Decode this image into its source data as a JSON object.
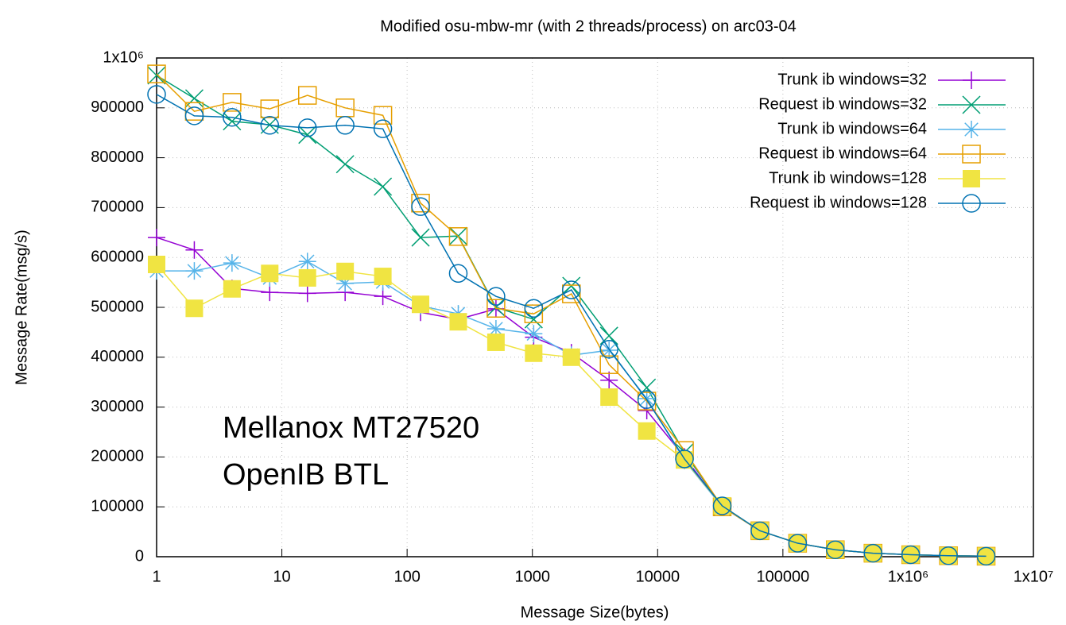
{
  "chart_data": {
    "type": "line",
    "title": "Modified osu-mbw-mr (with 2 threads/process) on arc03-04",
    "x_label": "Message Size(bytes)",
    "y_label": "Message Rate(msg/s)",
    "annotations": [
      "Mellanox MT27520",
      "OpenIB BTL"
    ],
    "x_log": true,
    "grid": true,
    "legend": "top-right",
    "xlim": [
      1,
      10000000
    ],
    "ylim": [
      0,
      1000000
    ],
    "xticks": [
      1,
      10,
      100,
      1000,
      10000,
      100000,
      {
        "value": 1000000,
        "label": "1x10⁶"
      },
      {
        "value": 10000000,
        "label": "1x10⁷"
      }
    ],
    "yticks": [
      0,
      100000,
      200000,
      300000,
      400000,
      500000,
      600000,
      700000,
      800000,
      900000,
      {
        "value": 1000000,
        "label": "1x10⁶"
      }
    ],
    "x": [
      1,
      2,
      4,
      8,
      16,
      32,
      64,
      128,
      256,
      512,
      1024,
      2048,
      4096,
      8192,
      16384,
      32768,
      65536,
      131072,
      262144,
      524288,
      1048576,
      2097152,
      4194304
    ],
    "series": [
      {
        "name": "Trunk ib windows=32",
        "color": "#9400d3",
        "marker": "plus",
        "values": [
          640000,
          615000,
          538000,
          530000,
          528000,
          530000,
          522000,
          490000,
          476000,
          497000,
          440000,
          409000,
          354000,
          293000,
          200000,
          100000,
          52000,
          27000,
          14000,
          7000,
          4000,
          2000,
          1000
        ]
      },
      {
        "name": "Request ib windows=32",
        "color": "#009e73",
        "marker": "cross",
        "values": [
          965000,
          919000,
          873000,
          866000,
          846000,
          787000,
          742000,
          640000,
          643000,
          500000,
          476000,
          543000,
          443000,
          339000,
          209000,
          100000,
          52000,
          27000,
          14000,
          7000,
          4000,
          2000,
          1000
        ]
      },
      {
        "name": "Trunk ib windows=64",
        "color": "#56b4e9",
        "marker": "star",
        "values": [
          573000,
          573000,
          589000,
          559000,
          592000,
          548000,
          551000,
          503000,
          487000,
          457000,
          447000,
          404000,
          414000,
          317000,
          193000,
          100000,
          52000,
          27000,
          14000,
          7000,
          4000,
          2000,
          1000
        ]
      },
      {
        "name": "Request ib windows=64",
        "color": "#e69f00",
        "marker": "square-open",
        "values": [
          968000,
          893000,
          911000,
          898000,
          925000,
          900000,
          885000,
          709000,
          642000,
          498000,
          487000,
          527000,
          385000,
          312000,
          213000,
          100000,
          52000,
          27000,
          14000,
          7000,
          4000,
          2000,
          1000
        ]
      },
      {
        "name": "Trunk ib windows=128",
        "color": "#f0e442",
        "marker": "square-filled",
        "values": [
          586000,
          498000,
          537000,
          568000,
          559000,
          572000,
          562000,
          506000,
          471000,
          430000,
          408000,
          400000,
          320000,
          252000,
          194000,
          102000,
          52000,
          27000,
          14000,
          7000,
          4000,
          2000,
          1000
        ]
      },
      {
        "name": "Request ib windows=128",
        "color": "#0072b2",
        "marker": "circle",
        "values": [
          927000,
          884000,
          881000,
          865000,
          860000,
          865000,
          858000,
          702000,
          568000,
          522000,
          498000,
          535000,
          416000,
          315000,
          196000,
          102000,
          52000,
          27000,
          14000,
          7000,
          4000,
          2000,
          1000
        ]
      }
    ]
  }
}
